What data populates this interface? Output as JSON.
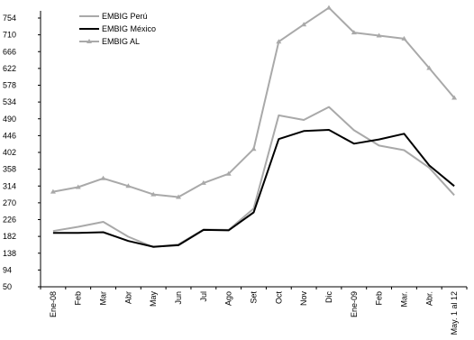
{
  "chart_data": {
    "type": "line",
    "title": "",
    "xlabel": "",
    "ylabel": "",
    "ylim": [
      50,
      754
    ],
    "yticks": [
      50,
      94,
      138,
      182,
      226,
      270,
      314,
      358,
      402,
      446,
      490,
      534,
      578,
      622,
      666,
      710,
      754
    ],
    "ytick_labels": [
      "50",
      "94",
      "138",
      "182",
      "226",
      "270",
      "314",
      "358",
      "402",
      "446",
      "490",
      "534",
      "578",
      "622",
      "666",
      "710",
      "754"
    ],
    "grid": false,
    "legend_position": "top-left",
    "categories": [
      "Ene-08",
      "Feb",
      "Mar",
      "Abr",
      "May",
      "Jun",
      "Jul",
      "Ago",
      "Set",
      "Oct",
      "Nov",
      "Dic",
      "Ene-09",
      "Feb",
      "Mar.",
      "Abr.",
      "May. 1 al 12"
    ],
    "series": [
      {
        "name": "EMBIG Perú",
        "color": "#a9a9a9",
        "marker": "none",
        "values": [
          196,
          207,
          220,
          181,
          154,
          161,
          200,
          199,
          255,
          499,
          487,
          521,
          460,
          420,
          408,
          362,
          290
        ]
      },
      {
        "name": "EMBIG México",
        "color": "#000000",
        "marker": "none",
        "values": [
          191,
          191,
          193,
          170,
          155,
          159,
          199,
          198,
          245,
          437,
          458,
          461,
          425,
          436,
          451,
          368,
          314
        ]
      },
      {
        "name": "EMBIG AL",
        "color": "#a9a9a9",
        "marker": "triangle",
        "values": [
          299,
          311,
          334,
          314,
          292,
          285,
          322,
          346,
          411,
          692,
          737,
          781,
          716,
          708,
          700,
          623,
          545
        ]
      }
    ]
  }
}
